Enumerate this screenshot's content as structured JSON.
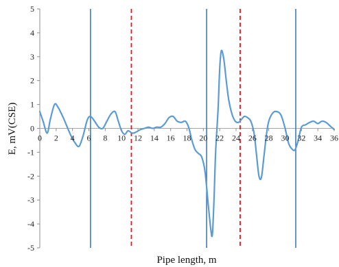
{
  "chart_data": {
    "type": "line",
    "title": "",
    "xlabel": "Pipe length, m",
    "ylabel": "E, mV(CSE)",
    "xlim": [
      0,
      36
    ],
    "ylim": [
      -5,
      5
    ],
    "x_ticks": [
      0,
      2,
      4,
      6,
      8,
      10,
      12,
      14,
      16,
      18,
      20,
      22,
      24,
      26,
      28,
      30,
      32,
      34,
      36
    ],
    "y_ticks": [
      -5,
      -4,
      -3,
      -2,
      -1,
      0,
      1,
      2,
      3,
      4,
      5
    ],
    "grid": false,
    "legend": "none",
    "series": [
      {
        "color": "#5b9bd5",
        "x": [
          0,
          0.4,
          0.9,
          1.3,
          1.8,
          2.2,
          2.8,
          3.3,
          3.8,
          4.3,
          4.8,
          5.3,
          5.8,
          6.2,
          6.7,
          7.2,
          7.7,
          8.2,
          8.7,
          9.2,
          9.6,
          10.0,
          10.4,
          10.8,
          11.3,
          11.8,
          12.3,
          12.8,
          13.3,
          13.8,
          14.3,
          14.8,
          15.3,
          15.8,
          16.3,
          16.8,
          17.3,
          17.8,
          18.2,
          18.6,
          19.0,
          19.4,
          19.8,
          20.2,
          20.6,
          20.9,
          21.1,
          21.3,
          21.5,
          21.8,
          22.0,
          22.2,
          22.5,
          22.8,
          23.1,
          23.5,
          23.9,
          24.3,
          24.6,
          25.0,
          25.4,
          25.8,
          26.2,
          26.5,
          26.8,
          27.1,
          27.4,
          27.7,
          28.0,
          28.5,
          29.0,
          29.5,
          30.0,
          30.4,
          30.8,
          31.2,
          31.6,
          32.0,
          32.5,
          33.0,
          33.5,
          34.0,
          34.5,
          35.0,
          35.5,
          36.0
        ],
        "y": [
          0.7,
          0.3,
          -0.2,
          0.4,
          1.0,
          0.9,
          0.5,
          0.1,
          -0.3,
          -0.6,
          -0.75,
          -0.3,
          0.35,
          0.5,
          0.3,
          0.05,
          0.0,
          0.3,
          0.6,
          0.7,
          0.3,
          -0.1,
          -0.25,
          -0.1,
          -0.2,
          -0.15,
          -0.05,
          0.0,
          0.05,
          0.0,
          0.05,
          0.05,
          0.2,
          0.45,
          0.5,
          0.3,
          0.25,
          0.3,
          0.05,
          -0.5,
          -0.9,
          -1.05,
          -1.2,
          -1.8,
          -3.2,
          -4.2,
          -4.45,
          -3.0,
          -1.0,
          0.8,
          2.5,
          3.25,
          2.9,
          2.0,
          1.2,
          0.6,
          0.3,
          0.25,
          0.35,
          0.5,
          0.45,
          0.3,
          -0.2,
          -1.1,
          -2.0,
          -2.05,
          -1.2,
          -0.3,
          0.3,
          0.65,
          0.7,
          0.55,
          0.0,
          -0.6,
          -0.85,
          -0.9,
          -0.5,
          0.05,
          0.15,
          0.25,
          0.3,
          0.2,
          0.3,
          0.25,
          0.1,
          -0.05
        ]
      }
    ],
    "vertical_lines": [
      {
        "x": 6.2,
        "style": "solid",
        "color": "#2e75b6"
      },
      {
        "x": 11.2,
        "style": "dashed",
        "color": "#e8141b"
      },
      {
        "x": 20.4,
        "style": "solid",
        "color": "#2e75b6"
      },
      {
        "x": 24.5,
        "style": "dashed",
        "color": "#e8141b"
      },
      {
        "x": 31.3,
        "style": "solid",
        "color": "#2e75b6"
      }
    ],
    "colors": {
      "axis": "#8c8c8c",
      "zero_line": "#a6a6a6",
      "text": "#222222"
    }
  }
}
